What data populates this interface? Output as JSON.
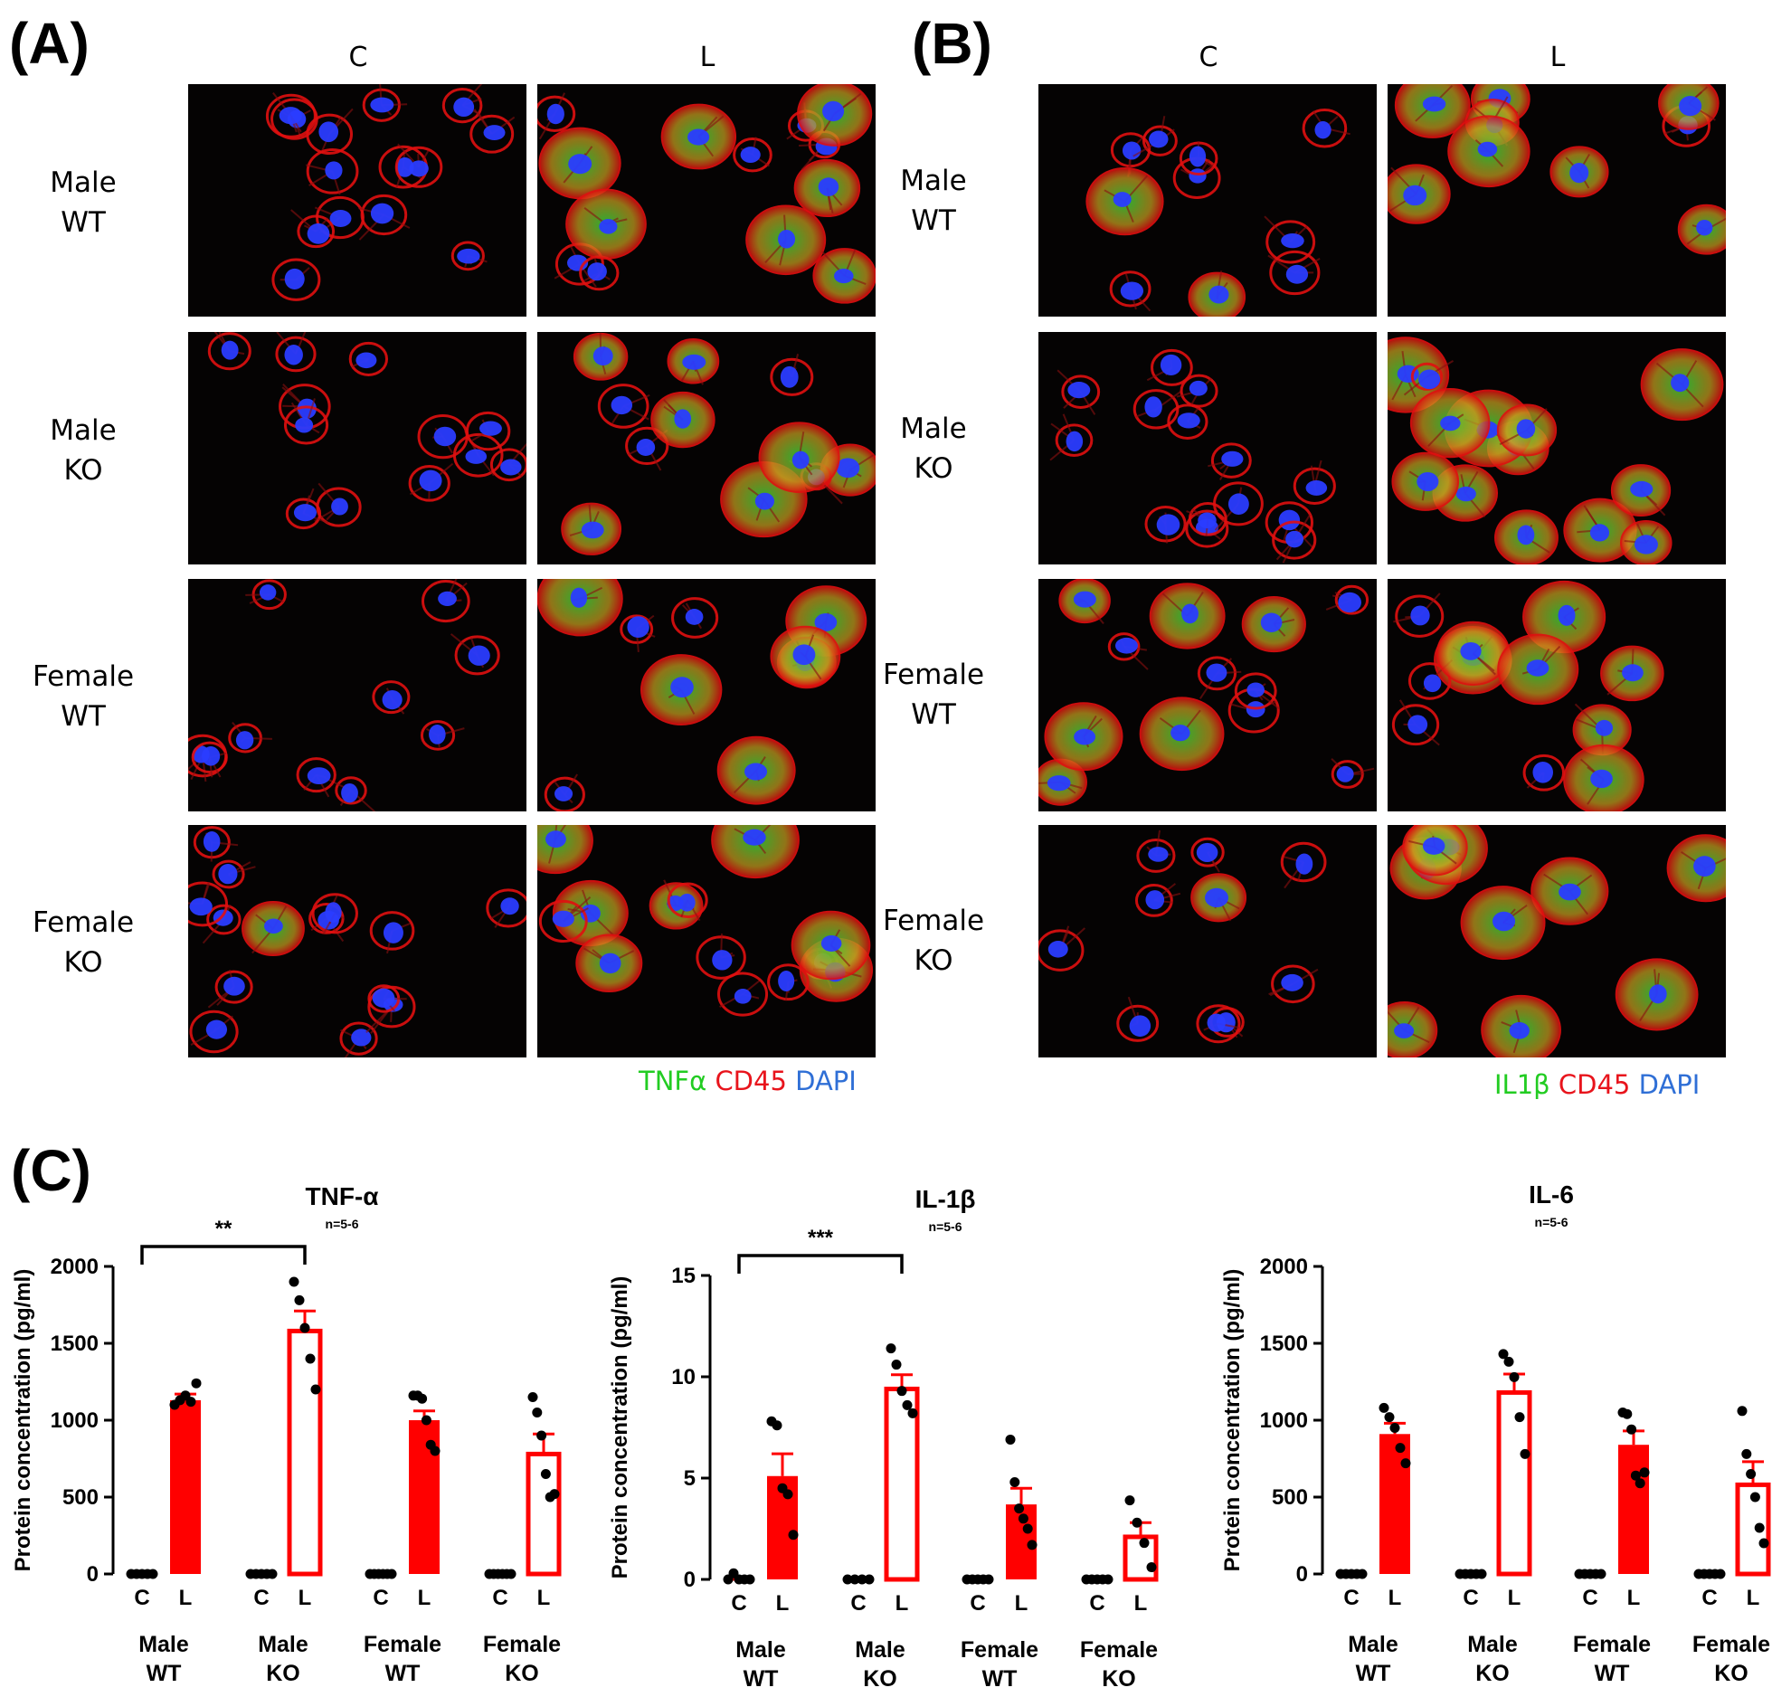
{
  "panels": {
    "A": {
      "letter": "(A)",
      "columns": [
        "C",
        "L"
      ],
      "rows": [
        {
          "line1": "Male",
          "line2": "WT"
        },
        {
          "line1": "Male",
          "line2": "KO"
        },
        {
          "line1": "Female",
          "line2": "WT"
        },
        {
          "line1": "Female",
          "line2": "KO"
        }
      ],
      "legend": [
        {
          "text": "TNFα",
          "color": "#22cc22"
        },
        {
          "text": "CD45",
          "color": "#e8141c"
        },
        {
          "text": "DAPI",
          "color": "#2f6fd6"
        }
      ]
    },
    "B": {
      "letter": "(B)",
      "columns": [
        "C",
        "L"
      ],
      "rows": [
        {
          "line1": "Male",
          "line2": "WT"
        },
        {
          "line1": "Male",
          "line2": "KO"
        },
        {
          "line1": "Female",
          "line2": "WT"
        },
        {
          "line1": "Female",
          "line2": "KO"
        }
      ],
      "legend": [
        {
          "text": "IL1β",
          "color": "#22cc22"
        },
        {
          "text": "CD45",
          "color": "#e8141c"
        },
        {
          "text": "DAPI",
          "color": "#2f6fd6"
        }
      ]
    },
    "C": {
      "letter": "(C)"
    }
  },
  "colors": {
    "bar": "#ff0000",
    "point": "#000000",
    "nucleus": "#2a3cff",
    "membrane": "#e01010",
    "cytokine": "#2ccf3a"
  },
  "chart_data": [
    {
      "type": "bar",
      "title": "TNF-α",
      "subtitle": "n=5-6",
      "ylabel": "Protein concentration (pg/ml)",
      "ylim": [
        0,
        2000
      ],
      "yticks": [
        0,
        500,
        1000,
        1500,
        2000
      ],
      "groups": [
        {
          "line1": "Male",
          "line2": "WT",
          "bars": [
            {
              "label": "C",
              "value": 0,
              "filled": true,
              "points": [
                0,
                0,
                0,
                0,
                0
              ]
            },
            {
              "label": "L",
              "value": 1130,
              "err": 40,
              "filled": true,
              "points": [
                1100,
                1130,
                1160,
                1120,
                1240
              ]
            }
          ]
        },
        {
          "line1": "Male",
          "line2": "KO",
          "bars": [
            {
              "label": "C",
              "value": 0,
              "filled": true,
              "points": [
                0,
                0,
                0,
                0,
                0
              ]
            },
            {
              "label": "L",
              "value": 1580,
              "err": 130,
              "filled": false,
              "points": [
                1900,
                1780,
                1600,
                1400,
                1200
              ]
            }
          ]
        },
        {
          "line1": "Female",
          "line2": "WT",
          "bars": [
            {
              "label": "C",
              "value": 0,
              "filled": true,
              "points": [
                0,
                0,
                0,
                0,
                0,
                0
              ]
            },
            {
              "label": "L",
              "value": 1000,
              "err": 60,
              "filled": true,
              "points": [
                1160,
                1160,
                1140,
                1000,
                840,
                800
              ]
            }
          ]
        },
        {
          "line1": "Female",
          "line2": "KO",
          "bars": [
            {
              "label": "C",
              "value": 0,
              "filled": true,
              "points": [
                0,
                0,
                0,
                0,
                0,
                0
              ]
            },
            {
              "label": "L",
              "value": 780,
              "err": 130,
              "filled": false,
              "points": [
                1150,
                1050,
                900,
                650,
                500,
                520
              ]
            }
          ]
        }
      ],
      "significance": {
        "label": "**",
        "from_group": 0,
        "to_group": 1
      }
    },
    {
      "type": "bar",
      "title": "IL-1β",
      "subtitle": "n=5-6",
      "ylabel": "Protein concentration (pg/ml)",
      "ylim": [
        0,
        15
      ],
      "yticks": [
        0,
        5,
        10,
        15
      ],
      "groups": [
        {
          "line1": "Male",
          "line2": "WT",
          "bars": [
            {
              "label": "C",
              "value": 0,
              "filled": true,
              "points": [
                0,
                0.3,
                0,
                0,
                0
              ]
            },
            {
              "label": "L",
              "value": 5.1,
              "err": 1.1,
              "filled": true,
              "points": [
                7.8,
                7.6,
                4.5,
                4.2,
                2.2
              ]
            }
          ]
        },
        {
          "line1": "Male",
          "line2": "KO",
          "bars": [
            {
              "label": "C",
              "value": 0,
              "filled": true,
              "points": [
                0,
                0,
                0,
                0
              ]
            },
            {
              "label": "L",
              "value": 9.4,
              "err": 0.7,
              "filled": false,
              "points": [
                11.4,
                10.6,
                9.3,
                8.6,
                8.2
              ]
            }
          ]
        },
        {
          "line1": "Female",
          "line2": "WT",
          "bars": [
            {
              "label": "C",
              "value": 0,
              "filled": true,
              "points": [
                0,
                0,
                0,
                0,
                0
              ]
            },
            {
              "label": "L",
              "value": 3.7,
              "err": 0.8,
              "filled": true,
              "points": [
                6.9,
                4.8,
                3.5,
                3.0,
                2.5,
                1.7
              ]
            }
          ]
        },
        {
          "line1": "Female",
          "line2": "KO",
          "bars": [
            {
              "label": "C",
              "value": 0,
              "filled": true,
              "points": [
                0,
                0,
                0,
                0,
                0
              ]
            },
            {
              "label": "L",
              "value": 2.1,
              "err": 0.7,
              "filled": false,
              "points": [
                3.9,
                2.8,
                1.8,
                0.6
              ]
            }
          ]
        }
      ],
      "significance": {
        "label": "***",
        "from_group": 0,
        "to_group": 1
      }
    },
    {
      "type": "bar",
      "title": "IL-6",
      "subtitle": "n=5-6",
      "ylabel": "Protein concentration (pg/ml)",
      "ylim": [
        0,
        2000
      ],
      "yticks": [
        0,
        500,
        1000,
        1500,
        2000
      ],
      "groups": [
        {
          "line1": "Male",
          "line2": "WT",
          "bars": [
            {
              "label": "C",
              "value": 0,
              "filled": true,
              "points": [
                0,
                0,
                0,
                0,
                0
              ]
            },
            {
              "label": "L",
              "value": 910,
              "err": 70,
              "filled": true,
              "points": [
                1080,
                1020,
                950,
                820,
                720
              ]
            }
          ]
        },
        {
          "line1": "Male",
          "line2": "KO",
          "bars": [
            {
              "label": "C",
              "value": 0,
              "filled": true,
              "points": [
                0,
                0,
                0,
                0,
                0
              ]
            },
            {
              "label": "L",
              "value": 1180,
              "err": 120,
              "filled": false,
              "points": [
                1430,
                1380,
                1280,
                1020,
                780
              ]
            }
          ]
        },
        {
          "line1": "Female",
          "line2": "WT",
          "bars": [
            {
              "label": "C",
              "value": 0,
              "filled": true,
              "points": [
                0,
                0,
                0,
                0,
                0
              ]
            },
            {
              "label": "L",
              "value": 840,
              "err": 90,
              "filled": true,
              "points": [
                1050,
                1040,
                940,
                640,
                590,
                660
              ]
            }
          ]
        },
        {
          "line1": "Female",
          "line2": "KO",
          "bars": [
            {
              "label": "C",
              "value": 0,
              "filled": true,
              "points": [
                0,
                0,
                0,
                0,
                0
              ]
            },
            {
              "label": "L",
              "value": 580,
              "err": 150,
              "filled": false,
              "points": [
                1060,
                780,
                650,
                500,
                300,
                200
              ]
            }
          ]
        }
      ],
      "significance": null
    }
  ]
}
